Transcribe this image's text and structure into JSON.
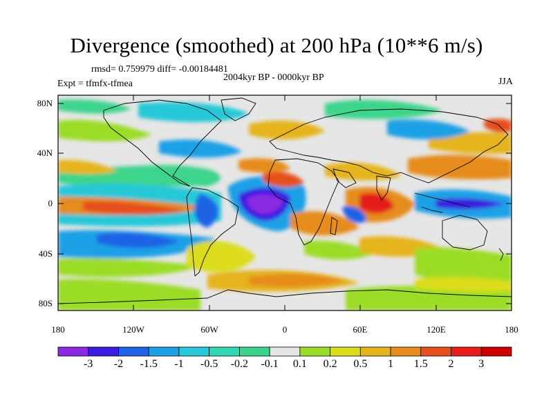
{
  "title": "Divergence (smoothed) at 200 hPa (10**6 m/s)",
  "stats_line": "rmsd= 0.759979 diff= -0.00184481",
  "experiment_line": "Expt = tfmfx-tfmea",
  "period": "2004kyr BP - 0000kyr BP",
  "season": "JJA",
  "lat_ticks": [
    "80N",
    "40N",
    "0",
    "40S",
    "80S"
  ],
  "lon_ticks": [
    "180",
    "120W",
    "60W",
    "0",
    "60E",
    "120E",
    "180"
  ],
  "colorbar": {
    "labels": [
      "-3",
      "-2",
      "-1.5",
      "-1",
      "-0.5",
      "-0.2",
      "-0.1",
      "0.1",
      "0.2",
      "0.5",
      "1",
      "1.5",
      "2",
      "3"
    ],
    "colors": [
      "#8a2be2",
      "#3a1ee0",
      "#1e64e6",
      "#1ea0e6",
      "#28c8d8",
      "#32d8b4",
      "#3cd48c",
      "#e6e6e6",
      "#9bdc28",
      "#dcdc1e",
      "#e6b41e",
      "#e68c1e",
      "#e6501e",
      "#e61e1e",
      "#cc0000"
    ]
  },
  "field_colors": {
    "background": "#e6e6e6",
    "land_outline": "#000000"
  }
}
